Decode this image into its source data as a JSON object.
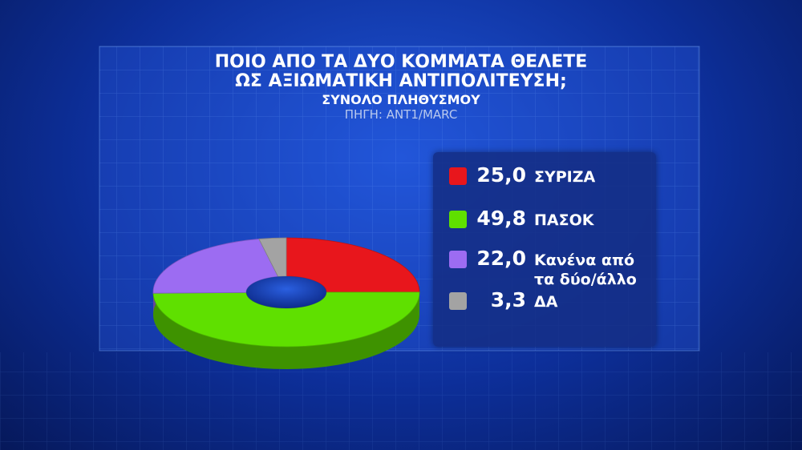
{
  "chart_data": {
    "type": "donut",
    "title": [
      "ΠΟΙΟ ΑΠΟ ΤΑ ΔΥΟ ΚΟΜΜΑΤΑ ΘΕΛΕΤΕ",
      "ΩΣ ΑΞΙΩΜΑΤΙΚΗ ΑΝΤΙΠΟΛΙΤΕΥΣΗ;"
    ],
    "subtitle": "ΣΥΝΟΛΟ ΠΛΗΘΥΣΜΟΥ",
    "source": "ΠΗΓΗ: ΑΝΤ1/MARC",
    "categories": [
      "ΣΥΡΙΖΑ",
      "ΠΑΣΟΚ",
      "Κανένα από τα δύο/άλλο",
      "ΔΑ"
    ],
    "values": [
      25.0,
      49.8,
      22.0,
      3.3
    ],
    "value_labels": [
      "25,0",
      "49,8",
      "22,0",
      "3,3"
    ],
    "colors": [
      "#e8161c",
      "#5fe000",
      "#9c6cf2",
      "#a3a3a3"
    ]
  }
}
